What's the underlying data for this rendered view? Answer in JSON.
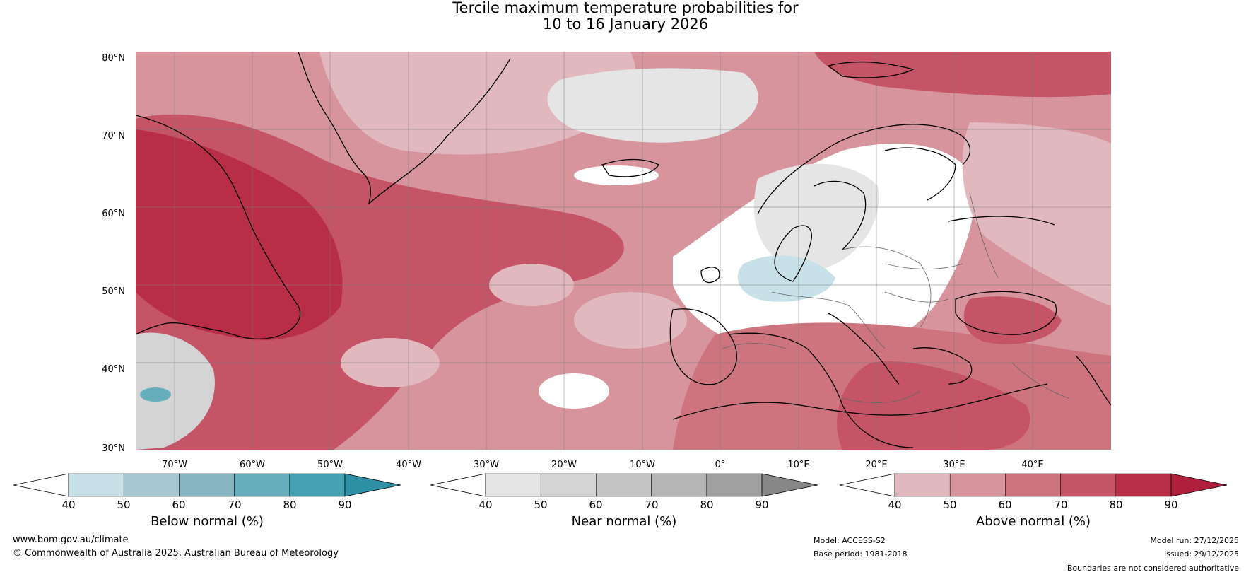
{
  "title": {
    "line1": "Tercile maximum temperature probabilities for",
    "line2": "10 to 16 January 2026"
  },
  "map": {
    "latitude_labels": [
      "80°N",
      "70°N",
      "60°N",
      "50°N",
      "40°N",
      "30°N"
    ],
    "longitude_labels": [
      "70°W",
      "60°W",
      "50°W",
      "40°W",
      "30°W",
      "20°W",
      "10°W",
      "0°",
      "10°E",
      "20°E",
      "30°E",
      "40°E"
    ]
  },
  "legends": [
    {
      "title": "Below normal (%)",
      "ticks": [
        "40",
        "50",
        "60",
        "70",
        "80",
        "90"
      ],
      "colors": [
        "#ffffff",
        "#c8e1e8",
        "#a7c8d0",
        "#87b5c2",
        "#67aebd",
        "#44a2b3",
        "#2d90a5"
      ]
    },
    {
      "title": "Near normal (%)",
      "ticks": [
        "40",
        "50",
        "60",
        "70",
        "80",
        "90"
      ],
      "colors": [
        "#ffffff",
        "#e5e5e5",
        "#d4d4d4",
        "#c4c4c4",
        "#b4b5b4",
        "#a0a0a0",
        "#878787"
      ]
    },
    {
      "title": "Above normal (%)",
      "ticks": [
        "40",
        "50",
        "60",
        "70",
        "80",
        "90"
      ],
      "colors": [
        "#ffffff",
        "#e2b8bf",
        "#d7949d",
        "#cd747f",
        "#c45466",
        "#b92e47",
        "#b0203d"
      ]
    }
  ],
  "footer": {
    "website": "www.bom.gov.au/climate",
    "copyright": "© Commonwealth of Australia 2025, Australian Bureau of Meteorology",
    "model": "Model: ACCESS-S2",
    "base_period": "Base period: 1981-2018",
    "model_run": "Model run: 27/12/2025",
    "issued": "Issued: 29/12/2025",
    "disclaimer": "Boundaries are not considered authoritative"
  }
}
